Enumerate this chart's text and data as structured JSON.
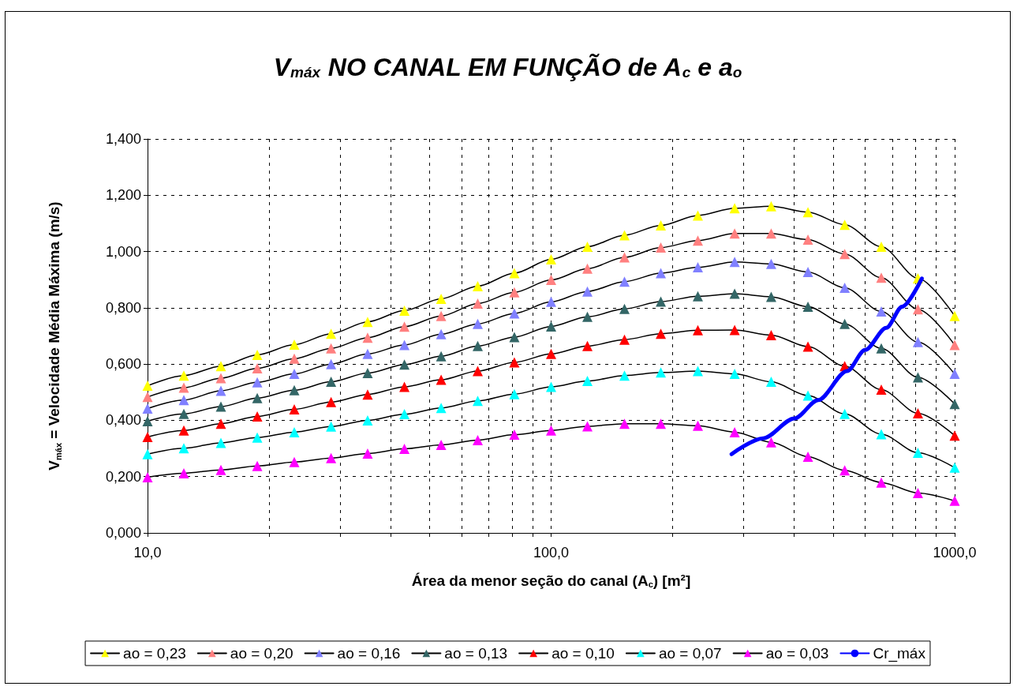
{
  "chart_data": {
    "type": "line",
    "title": "V$_{máx}$ NO CANAL EM FUNÇÃO de A$_{c}$ e a$_{o}$",
    "xlabel": "Área da menor seção do canal (A$_{c}$) [m²]",
    "ylabel": "V$_{máx}$ = Velocidade Média Máxima (m/s)",
    "log": "x",
    "x": [
      10,
      12.3,
      15.2,
      18.7,
      23.1,
      28.5,
      35.1,
      43.3,
      53.4,
      65.8,
      81.1,
      100,
      123,
      152,
      187,
      231,
      285,
      351,
      433,
      534,
      658,
      811,
      1000
    ],
    "series": [
      {
        "name": "ao = 0,23",
        "color": "#ffff00",
        "values": [
          0.523,
          0.559,
          0.593,
          0.633,
          0.669,
          0.708,
          0.75,
          0.79,
          0.832,
          0.877,
          0.923,
          0.972,
          1.017,
          1.058,
          1.093,
          1.128,
          1.154,
          1.161,
          1.14,
          1.095,
          1.017,
          0.905,
          0.771
        ]
      },
      {
        "name": "ao = 0,20",
        "color": "#ff8080",
        "values": [
          0.483,
          0.516,
          0.55,
          0.585,
          0.619,
          0.656,
          0.694,
          0.733,
          0.771,
          0.815,
          0.855,
          0.899,
          0.939,
          0.979,
          1.014,
          1.039,
          1.064,
          1.064,
          1.042,
          0.991,
          0.907,
          0.795,
          0.668
        ]
      },
      {
        "name": "ao = 0,16",
        "color": "#8080ff",
        "values": [
          0.442,
          0.472,
          0.505,
          0.535,
          0.565,
          0.6,
          0.636,
          0.668,
          0.706,
          0.743,
          0.78,
          0.821,
          0.858,
          0.893,
          0.923,
          0.944,
          0.963,
          0.956,
          0.927,
          0.871,
          0.787,
          0.678,
          0.565
        ]
      },
      {
        "name": "ao = 0,13",
        "color": "#336666",
        "values": [
          0.397,
          0.423,
          0.449,
          0.479,
          0.507,
          0.537,
          0.568,
          0.598,
          0.628,
          0.664,
          0.696,
          0.734,
          0.768,
          0.796,
          0.822,
          0.841,
          0.85,
          0.839,
          0.804,
          0.743,
          0.656,
          0.553,
          0.458
        ]
      },
      {
        "name": "ao = 0,10",
        "color": "#ff0000",
        "values": [
          0.341,
          0.364,
          0.388,
          0.414,
          0.439,
          0.465,
          0.492,
          0.519,
          0.544,
          0.575,
          0.606,
          0.636,
          0.664,
          0.687,
          0.708,
          0.72,
          0.721,
          0.703,
          0.662,
          0.593,
          0.509,
          0.425,
          0.346
        ]
      },
      {
        "name": "ao = 0,07",
        "color": "#00ffff",
        "values": [
          0.28,
          0.301,
          0.32,
          0.339,
          0.358,
          0.378,
          0.4,
          0.422,
          0.444,
          0.469,
          0.493,
          0.519,
          0.54,
          0.559,
          0.57,
          0.575,
          0.565,
          0.537,
          0.488,
          0.423,
          0.351,
          0.285,
          0.232
        ]
      },
      {
        "name": "ao = 0,03",
        "color": "#ff00ff",
        "values": [
          0.198,
          0.212,
          0.224,
          0.238,
          0.252,
          0.266,
          0.282,
          0.299,
          0.313,
          0.33,
          0.349,
          0.364,
          0.379,
          0.388,
          0.388,
          0.381,
          0.358,
          0.322,
          0.271,
          0.222,
          0.179,
          0.142,
          0.114
        ]
      },
      {
        "name": "Cr_máx",
        "color": "#0000ff",
        "marker": "none",
        "x": [
          280,
          335,
          401,
          459,
          541,
          600,
          677,
          741,
          829
        ],
        "values": [
          0.28,
          0.336,
          0.407,
          0.472,
          0.575,
          0.65,
          0.729,
          0.804,
          0.904
        ]
      }
    ],
    "marker": "triangle",
    "xlim": [
      10,
      1000
    ],
    "xticks": [
      {
        "value": 10,
        "label": "10,0"
      },
      {
        "value": 20,
        "label": null
      },
      {
        "value": 30,
        "label": null
      },
      {
        "value": 40,
        "label": null
      },
      {
        "value": 50,
        "label": null
      },
      {
        "value": 60,
        "label": null
      },
      {
        "value": 70,
        "label": null
      },
      {
        "value": 80,
        "label": null
      },
      {
        "value": 90,
        "label": null
      },
      {
        "value": 100,
        "label": "100,0"
      },
      {
        "value": 200,
        "label": null
      },
      {
        "value": 300,
        "label": null
      },
      {
        "value": 400,
        "label": null
      },
      {
        "value": 500,
        "label": null
      },
      {
        "value": 600,
        "label": null
      },
      {
        "value": 700,
        "label": null
      },
      {
        "value": 800,
        "label": null
      },
      {
        "value": 900,
        "label": null
      },
      {
        "value": 1000,
        "label": "1000,0"
      }
    ],
    "ylim": [
      0,
      1.4
    ],
    "yticks": [
      {
        "value": 0,
        "label": "0,000"
      },
      {
        "value": 0.2,
        "label": "0,200"
      },
      {
        "value": 0.4,
        "label": "0,400"
      },
      {
        "value": 0.6,
        "label": "0,600"
      },
      {
        "value": 0.8,
        "label": "0,800"
      },
      {
        "value": 1.0,
        "label": "1,000"
      },
      {
        "value": 1.2,
        "label": "1,200"
      },
      {
        "value": 1.4,
        "label": "1,400"
      }
    ],
    "grid": true,
    "legend": "bottom"
  }
}
